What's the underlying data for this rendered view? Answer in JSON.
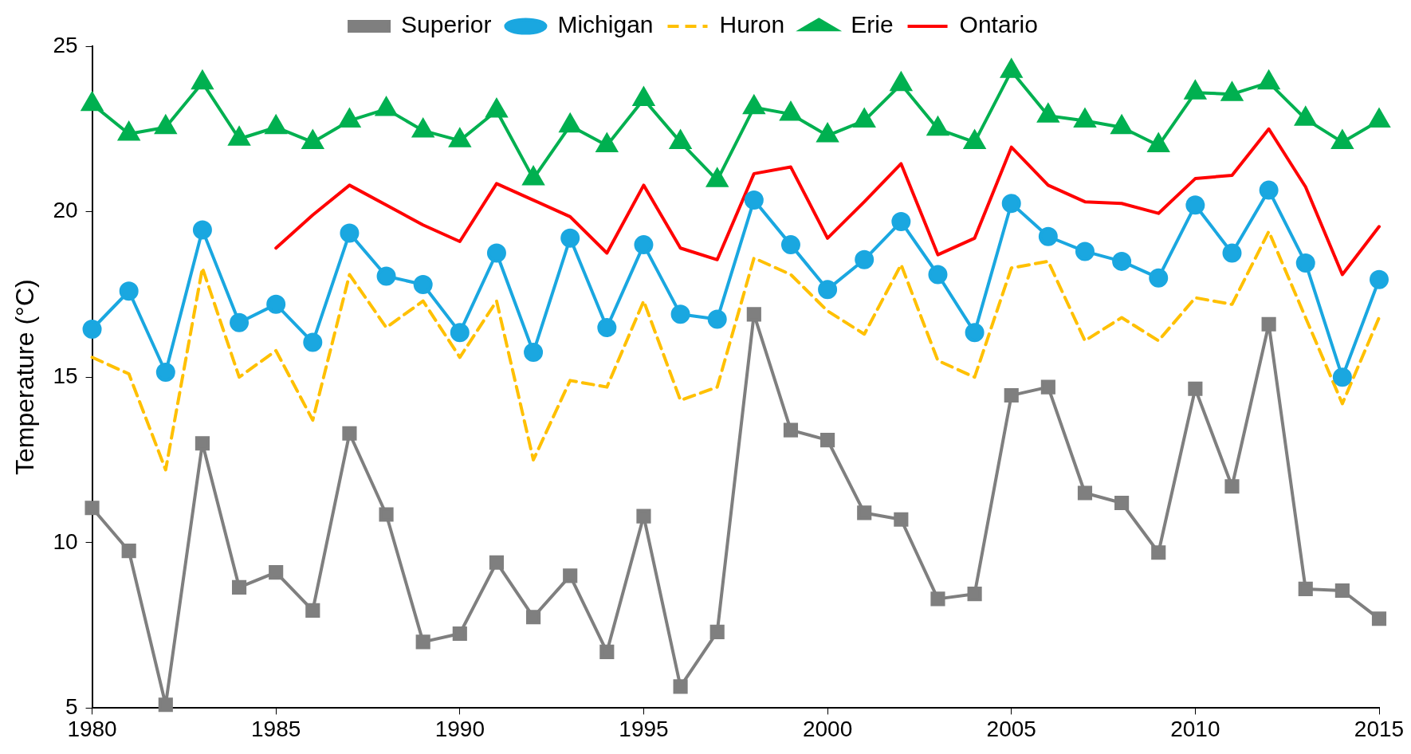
{
  "chart_data": {
    "type": "line",
    "ylabel": "Temperature (°C)",
    "x": [
      1980,
      1981,
      1982,
      1983,
      1984,
      1985,
      1986,
      1987,
      1988,
      1989,
      1990,
      1991,
      1992,
      1993,
      1994,
      1995,
      1996,
      1997,
      1998,
      1999,
      2000,
      2001,
      2002,
      2003,
      2004,
      2005,
      2006,
      2007,
      2008,
      2009,
      2010,
      2011,
      2012,
      2013,
      2014,
      2015
    ],
    "xlim": [
      1980,
      2015
    ],
    "xticks": [
      1980,
      1985,
      1990,
      1995,
      2000,
      2005,
      2010,
      2015
    ],
    "ylim": [
      5,
      25
    ],
    "yticks": [
      5,
      10,
      15,
      20,
      25
    ],
    "grid": false,
    "legend": "top",
    "series": [
      {
        "name": "Superior",
        "color": "#7f7f7f",
        "marker": "square",
        "line_style": "solid",
        "values": [
          11.05,
          9.75,
          5.1,
          13.0,
          8.65,
          9.1,
          7.95,
          13.3,
          10.85,
          7.0,
          7.25,
          9.4,
          7.75,
          9.0,
          6.7,
          10.8,
          5.65,
          7.3,
          16.9,
          13.4,
          13.1,
          10.9,
          10.7,
          8.3,
          8.45,
          14.45,
          14.7,
          11.5,
          11.2,
          9.7,
          14.65,
          11.7,
          16.6,
          8.6,
          8.55,
          7.7
        ]
      },
      {
        "name": "Michigan",
        "color": "#1aa7e0",
        "marker": "circle",
        "line_style": "solid",
        "values": [
          16.45,
          17.6,
          15.15,
          19.45,
          16.65,
          17.2,
          16.05,
          19.35,
          18.05,
          17.8,
          16.35,
          18.75,
          15.75,
          19.2,
          16.5,
          19.0,
          16.9,
          16.75,
          20.35,
          19.0,
          17.65,
          18.55,
          19.7,
          18.1,
          16.35,
          20.25,
          19.25,
          18.8,
          18.5,
          18.0,
          20.2,
          18.75,
          20.65,
          18.45,
          15.0,
          17.95
        ]
      },
      {
        "name": "Huron",
        "color": "#ffc000",
        "marker": "none",
        "line_style": "dashed",
        "values": [
          15.6,
          15.1,
          12.2,
          18.3,
          15.0,
          15.8,
          13.7,
          18.1,
          16.5,
          17.3,
          15.6,
          17.3,
          12.5,
          14.9,
          14.7,
          17.3,
          14.3,
          14.7,
          18.6,
          18.1,
          17.0,
          16.3,
          18.4,
          15.5,
          15.0,
          18.3,
          18.5,
          16.1,
          16.8,
          16.1,
          17.4,
          17.2,
          19.4,
          16.8,
          14.2,
          16.8
        ]
      },
      {
        "name": "Erie",
        "color": "#00b050",
        "marker": "triangle",
        "line_style": "solid",
        "values": [
          23.25,
          22.35,
          22.55,
          23.9,
          22.2,
          22.55,
          22.1,
          22.75,
          23.1,
          22.45,
          22.15,
          23.05,
          21.0,
          22.6,
          22.0,
          23.4,
          22.1,
          20.95,
          23.15,
          22.95,
          22.3,
          22.75,
          23.85,
          22.5,
          22.1,
          24.25,
          22.9,
          22.75,
          22.55,
          22.0,
          23.6,
          23.55,
          23.9,
          22.8,
          22.1,
          22.75
        ]
      },
      {
        "name": "Ontario",
        "color": "#ff0000",
        "marker": "none",
        "line_style": "solid",
        "values": [
          null,
          null,
          null,
          null,
          null,
          18.9,
          19.9,
          20.8,
          20.2,
          19.6,
          19.1,
          20.85,
          20.35,
          19.85,
          18.75,
          20.8,
          18.9,
          18.55,
          21.15,
          21.35,
          19.2,
          20.3,
          21.45,
          18.7,
          19.2,
          21.95,
          20.8,
          20.3,
          20.25,
          19.95,
          21.0,
          21.1,
          22.5,
          20.75,
          18.1,
          19.55
        ]
      }
    ]
  }
}
